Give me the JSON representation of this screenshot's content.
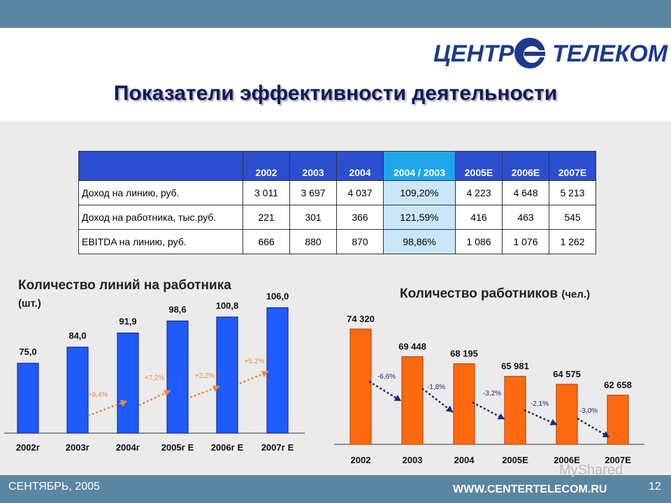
{
  "brand": {
    "left": "ЦЕНТР",
    "right": "ТЕЛЕКОМ",
    "colors": {
      "logo": "#1e3a8a",
      "bar_blue": "#1f5bff",
      "bar_orange": "#ff6a10",
      "header_blue": "#2b4fd0",
      "highlight": "#1fa6e8"
    }
  },
  "page": {
    "title": "Показатели эффективности деятельности"
  },
  "table": {
    "headers": [
      "",
      "2002",
      "2003",
      "2004",
      "2004 / 2003",
      "2005E",
      "2006E",
      "2007E"
    ],
    "rows": [
      [
        "Доход на линию, руб.",
        "3 011",
        "3 697",
        "4 037",
        "109,20%",
        "4 223",
        "4 648",
        "5 213"
      ],
      [
        "Доход на работника, тыс.руб.",
        "221",
        "301",
        "366",
        "121,59%",
        "416",
        "463",
        "545"
      ],
      [
        "EBITDA на линию, руб.",
        "666",
        "880",
        "870",
        "98,86%",
        "1 086",
        "1 076",
        "1 262"
      ]
    ]
  },
  "chart_data": [
    {
      "type": "bar",
      "title": "Количество линий на работника",
      "unit": "(шт.)",
      "categories": [
        "2002г",
        "2003г",
        "2004г",
        "2005г Е",
        "2006г Е",
        "2007г Е"
      ],
      "values": [
        75.0,
        84.0,
        91.9,
        98.6,
        100.8,
        106.0
      ],
      "value_labels": [
        "75,0",
        "84,0",
        "91,9",
        "98,6",
        "100,8",
        "106,0"
      ],
      "growth_labels": [
        "+9,4%",
        "+7,2%",
        "+2,2%",
        "+5,2%"
      ],
      "color": "#1f5bff"
    },
    {
      "type": "bar",
      "title": "Количество работников",
      "unit": "(чел.)",
      "categories": [
        "2002",
        "2003",
        "2004",
        "2005E",
        "2006E",
        "2007E"
      ],
      "values": [
        74320,
        69448,
        68195,
        65981,
        64575,
        62658
      ],
      "value_labels": [
        "74 320",
        "69 448",
        "68 195",
        "65 981",
        "64 575",
        "62 658"
      ],
      "growth_labels": [
        "-6,6%",
        "-1,8%",
        "-3,2%",
        "-2,1%",
        "-3,0%"
      ],
      "color": "#ff6a10"
    }
  ],
  "footer": {
    "date": "СЕНТЯБРЬ, 2005",
    "url": "WWW.CENTERTELECOM.RU",
    "page_number": "12",
    "watermark": "MyShared"
  }
}
